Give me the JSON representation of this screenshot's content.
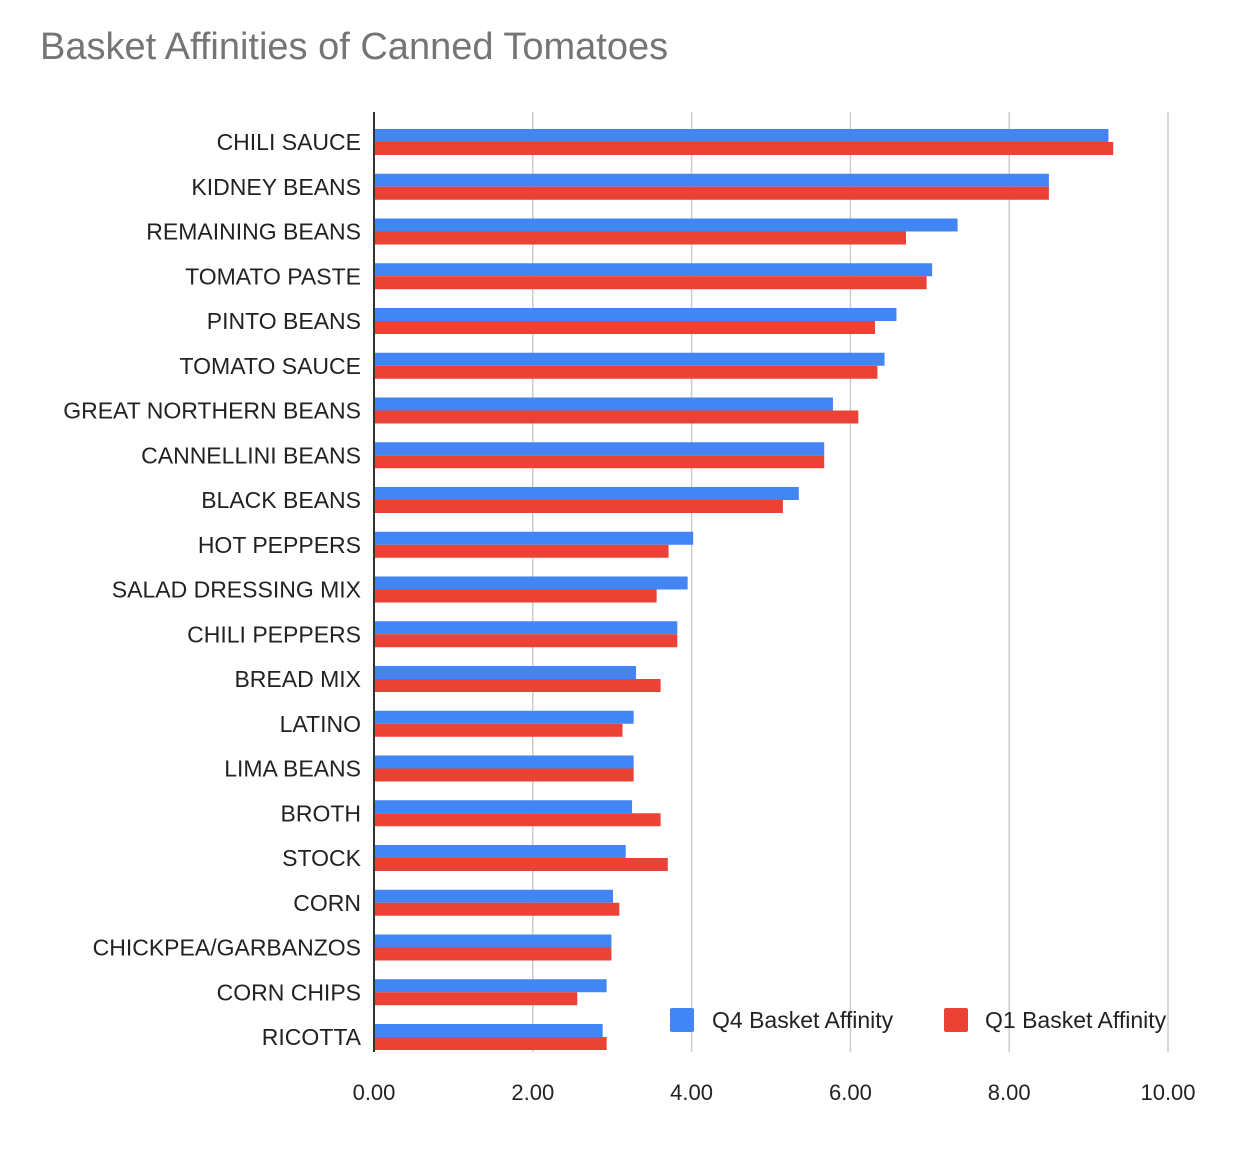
{
  "chart_data": {
    "type": "bar",
    "orientation": "horizontal",
    "title": "Basket Affinities of Canned Tomatoes",
    "xlabel": "",
    "ylabel": "",
    "xlim": [
      0,
      10
    ],
    "x_ticks": [
      "0.00",
      "2.00",
      "4.00",
      "6.00",
      "8.00",
      "10.00"
    ],
    "grid": true,
    "legend_position": "bottom-right inside",
    "categories": [
      "CHILI SAUCE",
      "KIDNEY BEANS",
      "REMAINING BEANS",
      "TOMATO PASTE",
      "PINTO BEANS",
      "TOMATO SAUCE",
      "GREAT NORTHERN BEANS",
      "CANNELLINI BEANS",
      "BLACK BEANS",
      "HOT PEPPERS",
      "SALAD DRESSING MIX",
      "CHILI PEPPERS",
      "BREAD MIX",
      "LATINO",
      "LIMA BEANS",
      "BROTH",
      "STOCK",
      "CORN",
      "CHICKPEA/GARBANZOS",
      "CORN CHIPS",
      "RICOTTA"
    ],
    "series": [
      {
        "name": "Q4 Basket Affinity",
        "color": "#4285f4",
        "values": [
          9.25,
          8.5,
          7.35,
          7.03,
          6.58,
          6.43,
          5.78,
          5.67,
          5.35,
          4.02,
          3.95,
          3.82,
          3.3,
          3.27,
          3.27,
          3.25,
          3.17,
          3.01,
          2.99,
          2.93,
          2.88
        ]
      },
      {
        "name": "Q1 Basket Affinity",
        "color": "#ea4335",
        "values": [
          9.31,
          8.5,
          6.7,
          6.96,
          6.31,
          6.34,
          6.1,
          5.67,
          5.15,
          3.71,
          3.56,
          3.82,
          3.61,
          3.13,
          3.27,
          3.61,
          3.7,
          3.09,
          2.99,
          2.56,
          2.93
        ]
      }
    ]
  }
}
